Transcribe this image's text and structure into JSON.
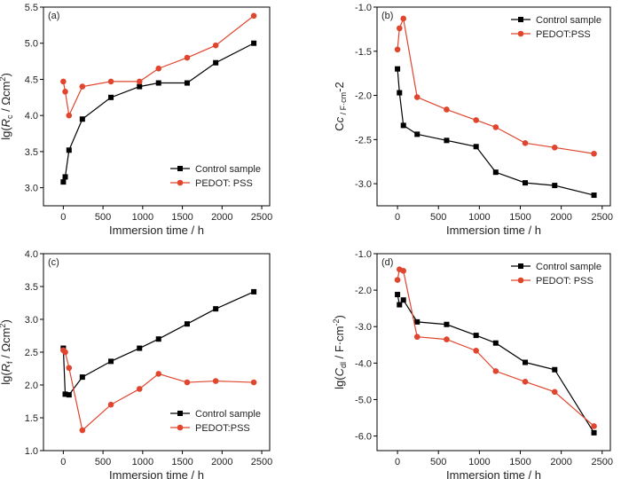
{
  "chart_data": [
    {
      "type": "line",
      "panel_label": "(a)",
      "xlabel": "Immersion time / h",
      "ylabel_html": [
        "lg(",
        "R",
        "c",
        " / Ωcm",
        "2",
        ")"
      ],
      "xlim": [
        -250,
        2600
      ],
      "ylim": [
        2.75,
        5.5
      ],
      "xticks": [
        0,
        500,
        1000,
        1500,
        2000,
        2500
      ],
      "yticks": [
        3.0,
        3.5,
        4.0,
        4.5,
        5.0,
        5.5
      ],
      "ytick_decimals": 1,
      "legend_position": "bottom-right",
      "series": [
        {
          "name": "Control sample",
          "color": "#000000",
          "marker": "square",
          "x": [
            0,
            24,
            72,
            240,
            600,
            960,
            1200,
            1560,
            1920,
            2400
          ],
          "y": [
            3.08,
            3.15,
            3.52,
            3.95,
            4.25,
            4.4,
            4.45,
            4.45,
            4.73,
            5.0
          ]
        },
        {
          "name": "PEDOT: PSS",
          "color": "#e0452e",
          "marker": "circle",
          "x": [
            0,
            24,
            72,
            240,
            600,
            960,
            1200,
            1560,
            1920,
            2400
          ],
          "y": [
            4.47,
            4.33,
            4.0,
            4.4,
            4.47,
            4.47,
            4.65,
            4.8,
            4.97,
            5.38
          ]
        }
      ]
    },
    {
      "type": "line",
      "panel_label": "(b)",
      "xlabel": "Immersion time / h",
      "ylabel_html": [
        "C",
        "c",
        " / F·cm",
        "-2",
        ""
      ],
      "xlim": [
        -250,
        2600
      ],
      "ylim": [
        -3.25,
        -1.0
      ],
      "xticks": [
        0,
        500,
        1000,
        1500,
        2000,
        2500
      ],
      "yticks": [
        -3.0,
        -2.5,
        -2.0,
        -1.5,
        -1.0
      ],
      "ytick_decimals": 1,
      "legend_position": "top-right",
      "series": [
        {
          "name": "Control sample",
          "color": "#000000",
          "marker": "square",
          "x": [
            0,
            24,
            72,
            240,
            600,
            960,
            1200,
            1560,
            1920,
            2400
          ],
          "y": [
            -1.7,
            -1.97,
            -2.34,
            -2.44,
            -2.51,
            -2.58,
            -2.87,
            -2.99,
            -3.02,
            -3.13
          ]
        },
        {
          "name": "PEDOT:PSS",
          "color": "#e0452e",
          "marker": "circle",
          "x": [
            0,
            24,
            72,
            240,
            600,
            960,
            1200,
            1560,
            1920,
            2400
          ],
          "y": [
            -1.48,
            -1.24,
            -1.13,
            -2.02,
            -2.16,
            -2.28,
            -2.36,
            -2.54,
            -2.59,
            -2.66
          ]
        }
      ]
    },
    {
      "type": "line",
      "panel_label": "(c)",
      "xlabel": "Immersion time / h",
      "ylabel_html": [
        "lg(",
        "R",
        "f",
        " / Ωcm",
        "2",
        ")"
      ],
      "xlim": [
        -250,
        2600
      ],
      "ylim": [
        1.0,
        4.0
      ],
      "xticks": [
        0,
        500,
        1000,
        1500,
        2000,
        2500
      ],
      "yticks": [
        1.0,
        1.5,
        2.0,
        2.5,
        3.0,
        3.5,
        4.0
      ],
      "ytick_decimals": 1,
      "legend_position": "bottom-right",
      "series": [
        {
          "name": "Control sample",
          "color": "#000000",
          "marker": "square",
          "x": [
            0,
            24,
            72,
            240,
            600,
            960,
            1200,
            1560,
            1920,
            2400
          ],
          "y": [
            2.56,
            1.86,
            1.85,
            2.12,
            2.36,
            2.56,
            2.7,
            2.93,
            3.16,
            3.42
          ]
        },
        {
          "name": "PEDOT:PSS",
          "color": "#e0452e",
          "marker": "circle",
          "x": [
            0,
            24,
            72,
            240,
            600,
            960,
            1200,
            1560,
            1920,
            2400
          ],
          "y": [
            2.53,
            2.5,
            2.26,
            1.31,
            1.7,
            1.94,
            2.17,
            2.04,
            2.06,
            2.04
          ]
        }
      ]
    },
    {
      "type": "line",
      "panel_label": "(d)",
      "xlabel": "Immersion time / h",
      "ylabel_html": [
        "lg(",
        "C",
        "dl",
        " / F·cm",
        "-2",
        ")"
      ],
      "xlim": [
        -250,
        2600
      ],
      "ylim": [
        -6.4,
        -1.0
      ],
      "xticks": [
        0,
        500,
        1000,
        1500,
        2000,
        2500
      ],
      "yticks": [
        -6.0,
        -5.0,
        -4.0,
        -3.0,
        -2.0,
        -1.0
      ],
      "ytick_decimals": 1,
      "legend_position": "top-right",
      "series": [
        {
          "name": "Control sample",
          "color": "#000000",
          "marker": "square",
          "x": [
            0,
            24,
            72,
            240,
            600,
            960,
            1200,
            1560,
            1920,
            2400
          ],
          "y": [
            -2.12,
            -2.4,
            -2.27,
            -2.87,
            -2.94,
            -3.24,
            -3.45,
            -3.98,
            -4.18,
            -5.91
          ]
        },
        {
          "name": "PEDOT: PSS",
          "color": "#e0452e",
          "marker": "circle",
          "x": [
            0,
            24,
            72,
            240,
            600,
            960,
            1200,
            1560,
            1920,
            2400
          ],
          "y": [
            -1.72,
            -1.43,
            -1.47,
            -3.28,
            -3.35,
            -3.66,
            -4.22,
            -4.51,
            -4.79,
            -5.73
          ]
        }
      ]
    }
  ]
}
